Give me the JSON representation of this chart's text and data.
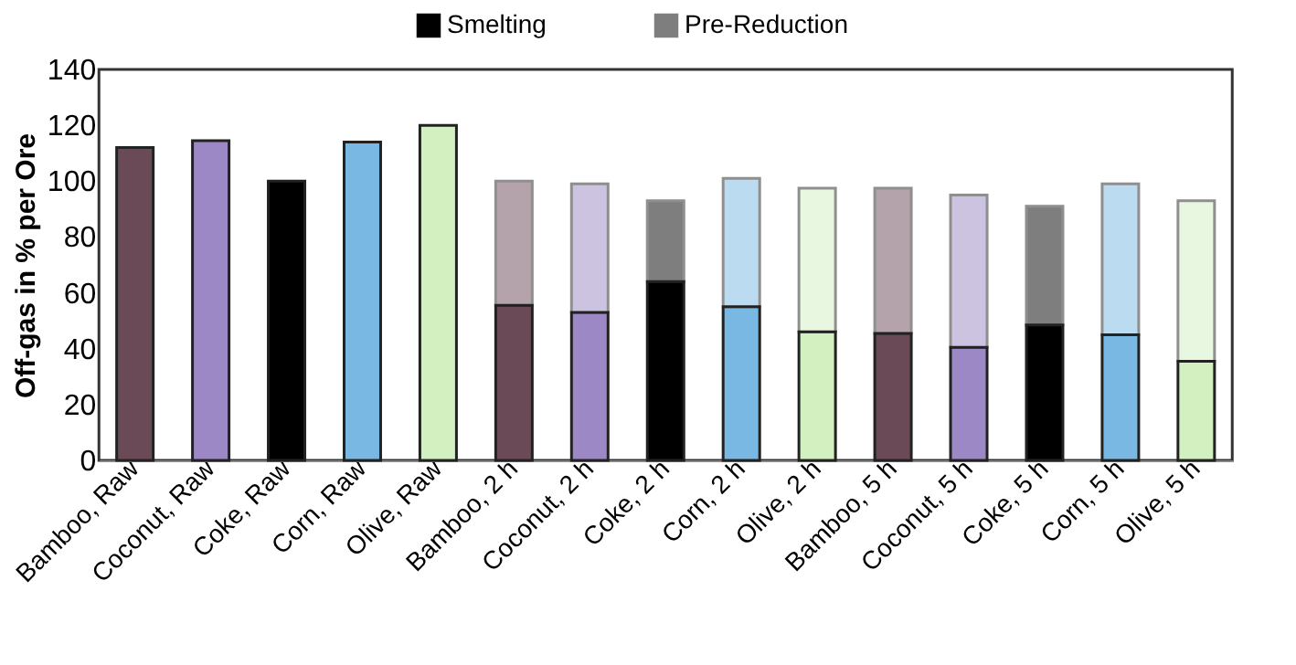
{
  "chart_data": {
    "type": "bar",
    "stacked": true,
    "ylabel": "Off-gas in % per Ore",
    "categories": [
      "Bamboo, Raw",
      "Coconut, Raw",
      "Coke, Raw",
      "Corn, Raw",
      "Olive, Raw",
      "Bamboo, 2 h",
      "Coconut, 2 h",
      "Coke, 2 h",
      "Corn, 2 h",
      "Olive, 2 h",
      "Bamboo, 5 h",
      "Coconut, 5 h",
      "Coke, 5 h",
      "Corn, 5 h",
      "Olive, 5 h"
    ],
    "series": [
      {
        "name": "Smelting",
        "color": "#000000",
        "colors": [
          "#6b4a58",
          "#9b88c4",
          "#000000",
          "#78b8e2",
          "#d2f0c0",
          "#6b4a58",
          "#9b88c4",
          "#000000",
          "#78b8e2",
          "#d2f0c0",
          "#6b4a58",
          "#9b88c4",
          "#000000",
          "#78b8e2",
          "#d2f0c0"
        ],
        "values": [
          112,
          114.5,
          100,
          114,
          120,
          55.5,
          53,
          64,
          55,
          46,
          45.5,
          40.5,
          48.5,
          45,
          35.5
        ]
      },
      {
        "name": "Pre-Reduction",
        "color": "#000000",
        "colors": [
          "#6b4a58",
          "#9b88c4",
          "#000000",
          "#78b8e2",
          "#d2f0c0",
          "#6b4a58",
          "#9b88c4",
          "#000000",
          "#78b8e2",
          "#d2f0c0",
          "#6b4a58",
          "#9b88c4",
          "#000000",
          "#78b8e2",
          "#d2f0c0"
        ],
        "values": [
          null,
          null,
          null,
          null,
          null,
          44.5,
          46,
          29,
          46,
          51.5,
          52,
          54.5,
          42.5,
          54,
          57.5
        ]
      }
    ],
    "ylim": [
      0,
      140
    ],
    "yticks": [
      0,
      20,
      40,
      60,
      80,
      100,
      120,
      140
    ],
    "grid": false,
    "legend": "top"
  }
}
